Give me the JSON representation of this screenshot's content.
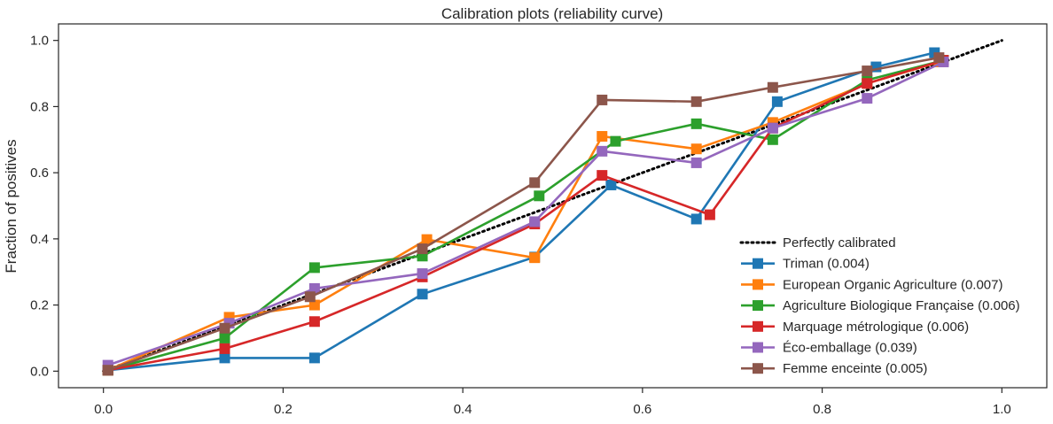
{
  "chart_data": {
    "type": "line",
    "title": "Calibration plots  (reliability curve)",
    "xlabel": "",
    "ylabel": "Fraction of positives",
    "xlim": [
      -0.05,
      1.05
    ],
    "ylim": [
      -0.05,
      1.05
    ],
    "xticks": [
      "0.0",
      "0.2",
      "0.4",
      "0.6",
      "0.8",
      "1.0"
    ],
    "yticks": [
      "0.0",
      "0.2",
      "0.4",
      "0.6",
      "0.8",
      "1.0"
    ],
    "grid": false,
    "legend_position": "lower-right",
    "reference_line": {
      "name": "Perfectly calibrated",
      "color": "#000000",
      "style": "dotted",
      "x": [
        0.0,
        1.0
      ],
      "y": [
        0.0,
        1.0
      ]
    },
    "series": [
      {
        "name": "Triman (0.004)",
        "color": "#1f77b4",
        "marker": "square",
        "x": [
          0.005,
          0.135,
          0.235,
          0.355,
          0.48,
          0.565,
          0.66,
          0.75,
          0.86,
          0.925
        ],
        "y": [
          0.003,
          0.04,
          0.04,
          0.233,
          0.345,
          0.563,
          0.46,
          0.815,
          0.92,
          0.963
        ]
      },
      {
        "name": "European Organic Agriculture (0.007)",
        "color": "#ff7f0e",
        "marker": "square",
        "x": [
          0.005,
          0.14,
          0.235,
          0.36,
          0.48,
          0.555,
          0.66,
          0.745,
          0.85,
          0.93
        ],
        "y": [
          0.003,
          0.163,
          0.2,
          0.398,
          0.343,
          0.71,
          0.672,
          0.752,
          0.87,
          0.935
        ]
      },
      {
        "name": "Agriculture Biologique Française (0.006)",
        "color": "#2ca02c",
        "marker": "square",
        "x": [
          0.005,
          0.135,
          0.235,
          0.355,
          0.485,
          0.57,
          0.66,
          0.745,
          0.85,
          0.935
        ],
        "y": [
          0.003,
          0.1,
          0.313,
          0.348,
          0.53,
          0.695,
          0.748,
          0.7,
          0.88,
          0.94
        ]
      },
      {
        "name": "Marquage métrologique (0.006)",
        "color": "#d62728",
        "marker": "square",
        "x": [
          0.005,
          0.135,
          0.235,
          0.355,
          0.48,
          0.555,
          0.675,
          0.745,
          0.85,
          0.935
        ],
        "y": [
          0.003,
          0.068,
          0.15,
          0.285,
          0.445,
          0.592,
          0.473,
          0.735,
          0.87,
          0.94
        ]
      },
      {
        "name": "Éco-emballage (0.039)",
        "color": "#9467bd",
        "marker": "square",
        "x": [
          0.005,
          0.14,
          0.235,
          0.355,
          0.48,
          0.555,
          0.66,
          0.745,
          0.85,
          0.935
        ],
        "y": [
          0.018,
          0.145,
          0.25,
          0.295,
          0.452,
          0.665,
          0.63,
          0.735,
          0.825,
          0.935
        ]
      },
      {
        "name": "Femme enceinte (0.005)",
        "color": "#8c564b",
        "marker": "square",
        "x": [
          0.005,
          0.135,
          0.23,
          0.355,
          0.48,
          0.555,
          0.66,
          0.745,
          0.85,
          0.93
        ],
        "y": [
          0.003,
          0.13,
          0.225,
          0.37,
          0.57,
          0.82,
          0.815,
          0.858,
          0.908,
          0.948
        ]
      }
    ]
  }
}
